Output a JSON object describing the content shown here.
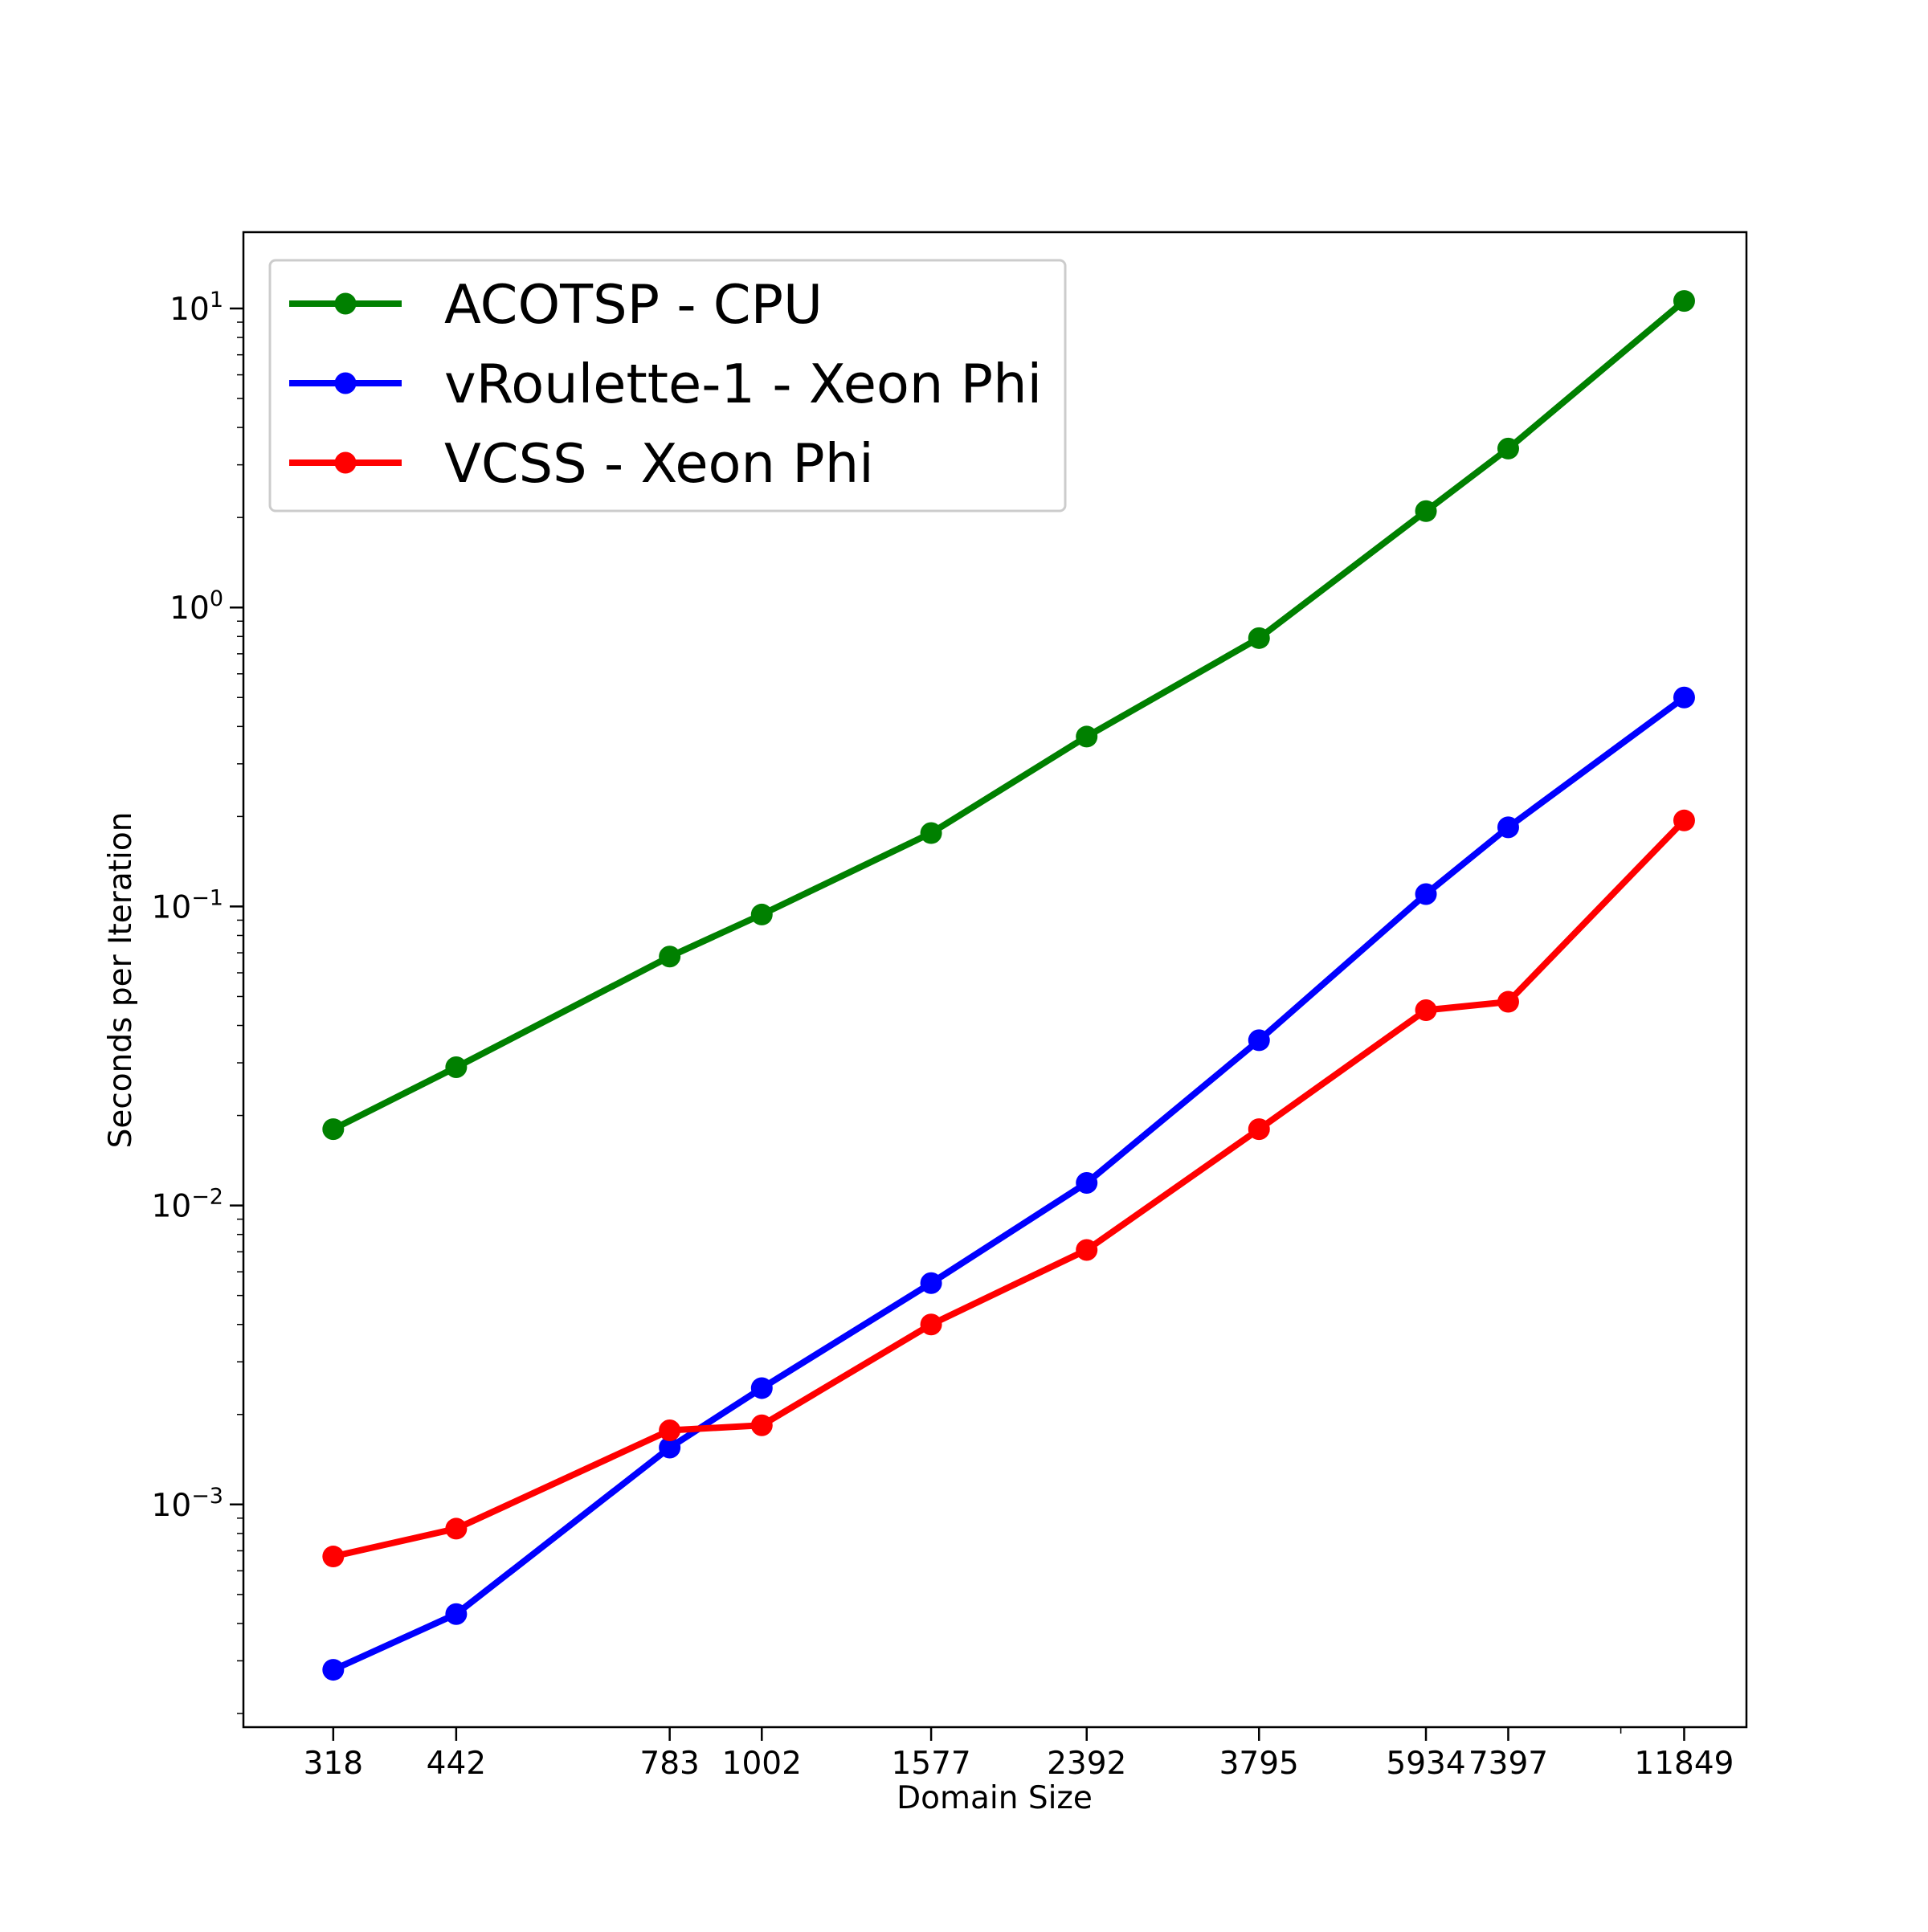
{
  "chart_data": {
    "type": "line",
    "title": "",
    "xlabel": "Domain Size",
    "ylabel": "Seconds per Iteration",
    "x_scale": "log",
    "y_scale": "log",
    "grid": false,
    "legend_position": "upper-left",
    "xlim": [
      250,
      14000
    ],
    "ylim": [
      0.00018,
      18
    ],
    "x_ticks": [
      318,
      442,
      783,
      1002,
      1577,
      2392,
      3795,
      5934,
      7397,
      11849
    ],
    "x_tick_labels": [
      "318",
      "442",
      "783",
      "1002",
      "1577",
      "2392",
      "3795",
      "5934",
      "7397",
      "11849"
    ],
    "y_ticks": [
      {
        "value": 0.001,
        "base": "10",
        "exp": "−3"
      },
      {
        "value": 0.01,
        "base": "10",
        "exp": "−2"
      },
      {
        "value": 0.1,
        "base": "10",
        "exp": "−1"
      },
      {
        "value": 1,
        "base": "10",
        "exp": "0"
      },
      {
        "value": 10,
        "base": "10",
        "exp": "1"
      }
    ],
    "x": [
      318,
      442,
      783,
      1002,
      1577,
      2392,
      3795,
      5934,
      7397,
      11849
    ],
    "series": [
      {
        "name": "ACOTSP - CPU",
        "color": "#008000",
        "values": [
          0.018,
          0.029,
          0.068,
          0.094,
          0.176,
          0.37,
          0.79,
          2.1,
          3.4,
          10.6
        ]
      },
      {
        "name": "vRoulette-1 - Xeon Phi",
        "color": "#0000ff",
        "values": [
          0.00028,
          0.00043,
          0.00155,
          0.00245,
          0.0055,
          0.0119,
          0.0357,
          0.11,
          0.184,
          0.5
        ]
      },
      {
        "name": "VCSS - Xeon Phi",
        "color": "#ff0000",
        "values": [
          0.00067,
          0.00083,
          0.00177,
          0.00184,
          0.004,
          0.0071,
          0.018,
          0.045,
          0.048,
          0.194
        ]
      }
    ]
  }
}
